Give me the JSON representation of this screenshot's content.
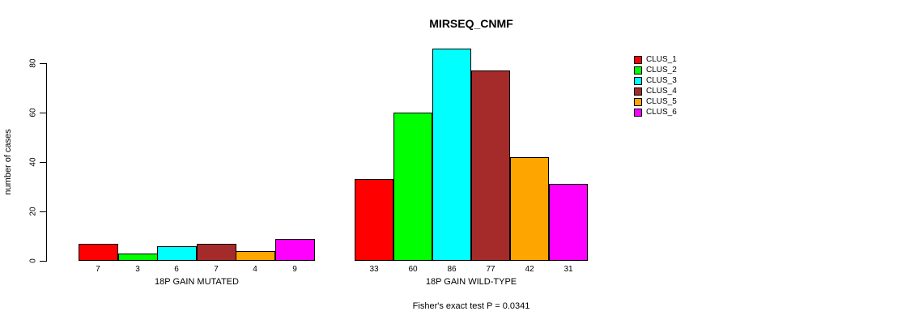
{
  "chart_data": {
    "type": "bar",
    "title": "MIRSEQ_CNMF",
    "ylabel": "number of cases",
    "xlabel": "",
    "ylim": [
      0,
      86
    ],
    "y_ticks": [
      0,
      20,
      40,
      60,
      80
    ],
    "grid": false,
    "legend_position": "right",
    "series_names": [
      "CLUS_1",
      "CLUS_2",
      "CLUS_3",
      "CLUS_4",
      "CLUS_5",
      "CLUS_6"
    ],
    "colors": [
      "#ff0000",
      "#00ff00",
      "#00ffff",
      "#a52a2a",
      "#ffa500",
      "#ff00ff"
    ],
    "groups": [
      {
        "label": "18P GAIN MUTATED",
        "values": [
          7,
          3,
          6,
          7,
          4,
          9
        ]
      },
      {
        "label": "18P GAIN WILD-TYPE",
        "values": [
          33,
          60,
          86,
          77,
          42,
          31
        ]
      }
    ],
    "annotation": "Fisher's exact test P = 0.0341"
  }
}
